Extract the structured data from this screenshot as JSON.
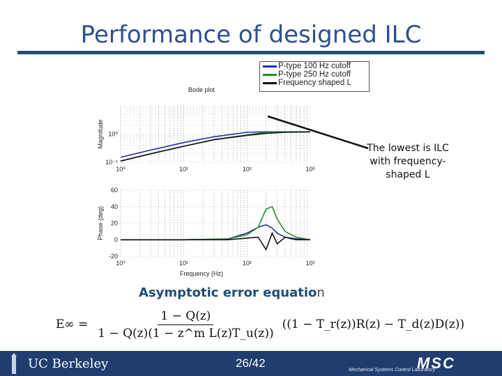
{
  "slide": {
    "title": "Performance of designed ILC",
    "annotation": "The lowest is ILC with frequency-shaped L",
    "subheading_main": "Asymptotic error equatio",
    "subheading_tail": "n",
    "equation": {
      "lhs": "E∞ =",
      "numerator": "1 − Q(z)",
      "denominator": "1 − Q(z)(1 − z^m L(z)T_u(z))",
      "rhs": "((1 − T_r(z))R(z) − T_d(z)D(z))"
    },
    "page_number": "26/42",
    "footer_brand": "UC Berkeley",
    "footer_lab": "MSC",
    "footer_lab_sub": "Mechanical Systems Control Laboratory"
  },
  "legend": [
    {
      "label": "P-type 100 Hz cutoff",
      "color": "#1f2fa8"
    },
    {
      "label": "P-type 250 Hz cutoff",
      "color": "#2e8b2e"
    },
    {
      "label": "Frequency shaped L",
      "color": "#111111"
    }
  ],
  "chart_data": [
    {
      "type": "line",
      "title": "Bode plot",
      "xlabel": "",
      "ylabel": "Magnitude",
      "xscale": "log",
      "yscale": "log",
      "xlim": [
        1,
        1000
      ],
      "ylim": [
        0.1,
        10
      ],
      "x_ticks": [
        "10^0",
        "10^1",
        "10^2",
        "10^3"
      ],
      "y_ticks": [
        "10^-1",
        "10^0"
      ],
      "x": [
        1,
        3,
        10,
        30,
        100,
        200,
        400,
        1000
      ],
      "series": [
        {
          "name": "P-type 100 Hz cutoff",
          "color": "#1f2fa8",
          "values": [
            0.15,
            0.27,
            0.5,
            0.8,
            1.15,
            1.2,
            1.2,
            1.2
          ]
        },
        {
          "name": "P-type 250 Hz cutoff",
          "color": "#2e8b2e",
          "values": [
            0.11,
            0.2,
            0.37,
            0.63,
            0.93,
            1.15,
            1.2,
            1.2
          ]
        },
        {
          "name": "Frequency shaped L",
          "color": "#111111",
          "values": [
            0.11,
            0.2,
            0.37,
            0.63,
            0.9,
            1.05,
            1.15,
            1.2
          ]
        }
      ],
      "grid": true
    },
    {
      "type": "line",
      "title": "",
      "xlabel": "Frequency (Hz)",
      "ylabel": "Phase (deg)",
      "xscale": "log",
      "xlim": [
        1,
        1000
      ],
      "ylim": [
        -20,
        60
      ],
      "x_ticks": [
        "10^0",
        "10^1",
        "10^2",
        "10^3"
      ],
      "y_ticks": [
        "60",
        "40",
        "20",
        "0",
        "-20"
      ],
      "x": [
        1,
        10,
        50,
        100,
        150,
        200,
        250,
        300,
        400,
        600,
        1000
      ],
      "series": [
        {
          "name": "P-type 100 Hz cutoff",
          "color": "#1f2fa8",
          "values": [
            0,
            0,
            1,
            8,
            15,
            18,
            14,
            8,
            3,
            1,
            0
          ]
        },
        {
          "name": "P-type 250 Hz cutoff",
          "color": "#2e8b2e",
          "values": [
            0,
            0,
            1,
            6,
            15,
            37,
            40,
            25,
            10,
            3,
            0
          ]
        },
        {
          "name": "Frequency shaped L",
          "color": "#111111",
          "values": [
            0,
            0,
            0,
            2,
            3,
            -12,
            8,
            -5,
            3,
            0,
            0
          ]
        }
      ],
      "grid": true
    }
  ]
}
